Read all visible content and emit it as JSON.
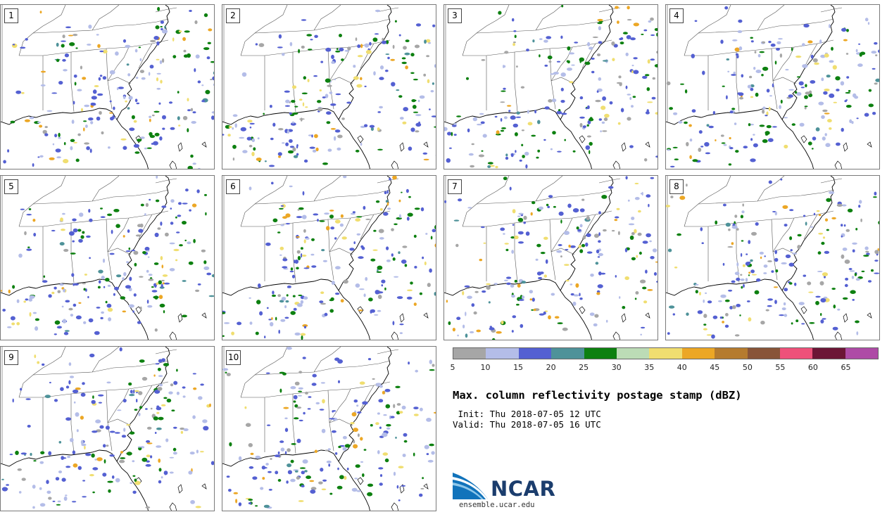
{
  "panels": [
    {
      "label": "1"
    },
    {
      "label": "2"
    },
    {
      "label": "3"
    },
    {
      "label": "4"
    },
    {
      "label": "5"
    },
    {
      "label": "6"
    },
    {
      "label": "7"
    },
    {
      "label": "8"
    },
    {
      "label": "9"
    },
    {
      "label": "10"
    }
  ],
  "legend": {
    "bin_colors": [
      "#a6a6a6",
      "#b4bde8",
      "#5460d2",
      "#4e9299",
      "#0d8010",
      "#bcdcb6",
      "#f0de70",
      "#eca725",
      "#b57b2e",
      "#885438",
      "#ee517a",
      "#6c1636",
      "#ae4ba6"
    ],
    "tick_labels": [
      "5",
      "10",
      "15",
      "20",
      "25",
      "30",
      "35",
      "40",
      "45",
      "50",
      "55",
      "60",
      "65"
    ]
  },
  "title": "Max. column reflectivity postage stamp (dBZ)",
  "init": " Init: Thu 2018-07-05 12 UTC",
  "valid": "Valid: Thu 2018-07-05 16 UTC",
  "logo": {
    "wordmark": "NCAR",
    "website": "ensemble.ucar.edu"
  }
}
